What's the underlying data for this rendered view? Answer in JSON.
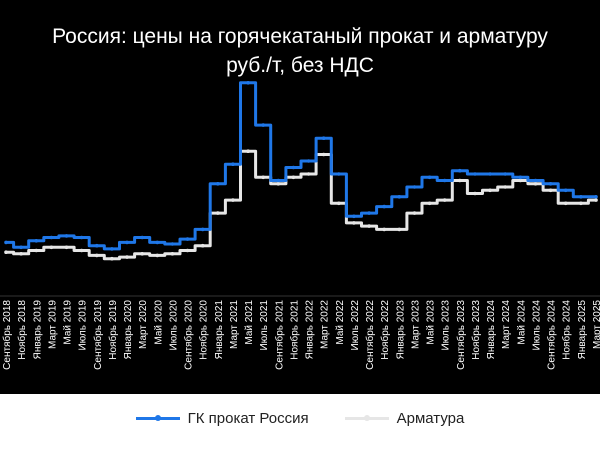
{
  "colors": {
    "background": "#000000",
    "hrc": "#1f77e8",
    "rebar": "#e6e6e6",
    "legend_bg": "#ffffff"
  },
  "chart_data": {
    "type": "line",
    "title": "Россия: цены на горячекатаный прокат и арматуру",
    "subtitle": "руб./т, без НДС",
    "xlabel": "",
    "ylabel": "",
    "x": [
      "Сентябрь 2018",
      "Ноябрь 2018",
      "Январь 2019",
      "Март 2019",
      "Май 2019",
      "Июль 2019",
      "Сентябрь 2019",
      "Ноябрь 2019",
      "Январь 2020",
      "Март 2020",
      "Май 2020",
      "Июль 2020",
      "Сентябрь 2020",
      "Ноябрь 2020",
      "Январь 2021",
      "Март 2021",
      "Май 2021",
      "Июль 2021",
      "Сентябрь 2021",
      "Ноябрь 2021",
      "Январь 2022",
      "Март 2022",
      "Май 2022",
      "Июль 2022",
      "Сентябрь 2022",
      "Ноябрь 2022",
      "Январь 2023",
      "Март 2023",
      "Май 2023",
      "Июль 2023",
      "Сентябрь 2023",
      "Ноябрь 2023",
      "Январь 2024",
      "Март 2024",
      "Май 2024",
      "Июль 2024",
      "Сентябрь 2024",
      "Ноябрь 2024",
      "Январь 2025",
      "Март 2025"
    ],
    "series": [
      {
        "name": "ГК прокат Россия",
        "color": "#1f77e8",
        "values": [
          44000,
          42500,
          44500,
          45500,
          46000,
          45500,
          43000,
          42000,
          44000,
          45500,
          44000,
          43500,
          45000,
          48000,
          62000,
          68000,
          93000,
          80000,
          63000,
          67000,
          69000,
          76000,
          65000,
          52000,
          53000,
          55000,
          58000,
          61000,
          64000,
          63000,
          66000,
          65000,
          65000,
          65000,
          64000,
          63000,
          62000,
          60000,
          58000,
          58000
        ]
      },
      {
        "name": "Арматура",
        "color": "#e6e6e6",
        "values": [
          41000,
          40500,
          41500,
          42500,
          42500,
          41500,
          40000,
          39000,
          39500,
          40500,
          40000,
          40500,
          41500,
          43000,
          53000,
          57000,
          72000,
          64000,
          62000,
          64000,
          65000,
          71000,
          56000,
          50000,
          49000,
          48000,
          48000,
          53000,
          56000,
          57000,
          63000,
          59000,
          60000,
          61000,
          63000,
          62000,
          60000,
          56000,
          56000,
          57000
        ]
      }
    ],
    "ylim": [
      30000,
      100000
    ],
    "grid": false,
    "legend_position": "bottom"
  }
}
